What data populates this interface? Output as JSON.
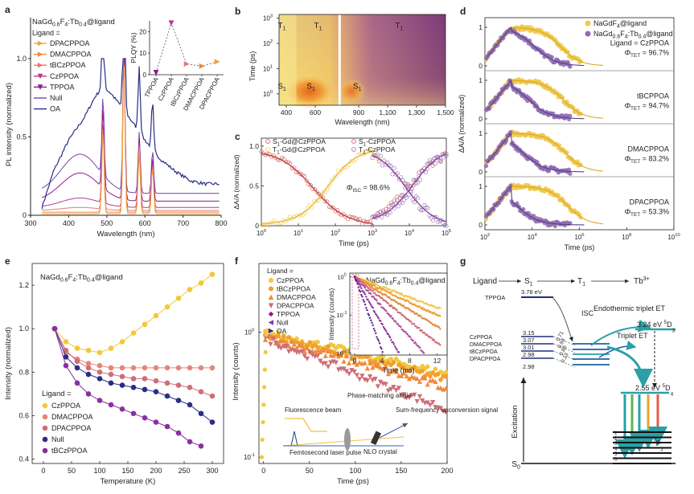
{
  "panel_labels": [
    "a",
    "b",
    "c",
    "d",
    "e",
    "f",
    "g"
  ],
  "colors": {
    "dpacppoa": "#f2a33a",
    "dmacppoa": "#f08a3c",
    "tbczppoa": "#e77a72",
    "czppoa": "#b83a8f",
    "tppoa": "#8b1a8f",
    "null": "#7a3fb0",
    "oa": "#2b2d84",
    "yellow": "#f0c84a",
    "purple": "#8e6bb0",
    "red": "#c9524f",
    "orange": "#f0a030",
    "cz_e": "#f3c83a",
    "dmac_e": "#e6857a",
    "dpac_e": "#cf6d78",
    "null_e": "#2b2d84",
    "tbcz_e": "#8b2fa0",
    "teal": "#2aa0a6",
    "blue": "#1f5fa6",
    "green": "#5db356"
  },
  "chart_data": [
    {
      "id": "a",
      "type": "line",
      "title": "NaGd0.6F4:Tb0.4@ligand",
      "legend_title": "Ligand =",
      "series": [
        {
          "name": "DPACPPOA",
          "color_key": "dpacppoa"
        },
        {
          "name": "DMACPPOA",
          "color_key": "dmacppoa"
        },
        {
          "name": "tBCzPPOA",
          "color_key": "tbczppoa"
        },
        {
          "name": "CzPPOA",
          "color_key": "czppoa"
        },
        {
          "name": "TPPOA",
          "color_key": "tppoa"
        },
        {
          "name": "Null",
          "color_key": "null"
        },
        {
          "name": "OA",
          "color_key": "oa"
        }
      ],
      "xlabel": "Wavelength (nm)",
      "ylabel": "PL intensity (normalized)",
      "xlim": [
        300,
        800
      ],
      "ylim": [
        0,
        1.2
      ],
      "xticks": [
        300,
        400,
        500,
        600,
        700,
        800
      ],
      "yticks": [
        0,
        0.5,
        1.0
      ],
      "ytick_labels": [
        "0",
        "0.5",
        "1.0"
      ],
      "emission_peaks_nm": [
        490,
        545,
        585,
        620
      ],
      "emission_peak_heights": [
        0.55,
        1.0,
        0.42,
        0.3
      ],
      "oa_broad_band": {
        "x": [
          330,
          360,
          400,
          440,
          470,
          490,
          510,
          530,
          560,
          600,
          640,
          680,
          720,
          760,
          790
        ],
        "y": [
          0.05,
          0.28,
          0.48,
          0.62,
          0.76,
          0.82,
          0.78,
          0.72,
          0.62,
          0.48,
          0.36,
          0.28,
          0.22,
          0.2,
          0.2
        ]
      },
      "inset": {
        "type": "line",
        "ylabel": "PLQY (%)",
        "ylim": [
          0,
          25
        ],
        "yticks": [
          0,
          10,
          20
        ],
        "categories": [
          "TPPOA",
          "CzPPOA",
          "tBCzPPOA",
          "DMACPPOA",
          "DPACPPOA"
        ],
        "values": [
          1,
          24,
          5,
          4,
          6
        ],
        "point_color_keys": [
          "tppoa",
          "czppoa",
          "tbczppoa",
          "dmacppoa",
          "dpacppoa"
        ]
      }
    },
    {
      "id": "b",
      "type": "heatmap",
      "xlabel": "Wavelength (nm)",
      "ylabel": "Time (ps)",
      "xticks": [
        400,
        600,
        900,
        1100,
        1300,
        1500
      ],
      "xtick_labels": [
        "400",
        "600",
        "900",
        "1,100",
        "1,300",
        "1,500"
      ],
      "yticks_exp": [
        "0",
        "1",
        "2",
        "3"
      ],
      "region_labels": [
        {
          "text": "T",
          "sub": "1",
          "wavelength": 370,
          "log_time": 2.7
        },
        {
          "text": "T",
          "sub": "1",
          "wavelength": 620,
          "log_time": 2.7
        },
        {
          "text": "T",
          "sub": "1",
          "wavelength": 1180,
          "log_time": 2.7
        },
        {
          "text": "S",
          "sub": "1",
          "wavelength": 370,
          "log_time": 0.3
        },
        {
          "text": "S",
          "sub": "1",
          "wavelength": 570,
          "log_time": 0.3
        },
        {
          "text": "S",
          "sub": "1",
          "wavelength": 890,
          "log_time": 0.3
        }
      ]
    },
    {
      "id": "c",
      "type": "scatter",
      "xlabel": "Time (ps)",
      "ylabel": "ΔA/A (normalized)",
      "xlim_log": [
        0,
        5
      ],
      "ylim": [
        0,
        1.1
      ],
      "xticks_exp": [
        "0",
        "1",
        "2",
        "3",
        "4",
        "5"
      ],
      "yticks": [
        0,
        0.5,
        1.0
      ],
      "ytick_labels": [
        "0",
        "0.5",
        "1.0"
      ],
      "legend": [
        {
          "name": "S1-Gd@CzPPOA",
          "base": "S",
          "sub": "1",
          "rest": "-Gd@CzPPOA",
          "color_key": "red"
        },
        {
          "name": "T1-Gd@CzPPOA",
          "base": "T",
          "sub": "1",
          "rest": "-Gd@CzPPOA",
          "color_key": "yellow"
        },
        {
          "name": "S1-CzPPOA",
          "base": "S",
          "sub": "1",
          "rest": "-CzPPOA",
          "color_key": "red"
        },
        {
          "name": "T1-CzPPOA",
          "base": "T",
          "sub": "1",
          "rest": "-CzPPOA",
          "color_key": "purple"
        }
      ],
      "annotation": {
        "base": "Φ",
        "sub": "ISC",
        "rest": " = 98.6%"
      }
    },
    {
      "id": "d",
      "type": "scatter",
      "xlabel": "Time (ps)",
      "ylabel": "ΔA/A (normalized)",
      "xticks_exp": [
        "2",
        "4",
        "6",
        "8",
        "10"
      ],
      "legend": [
        {
          "name": "NaGdF4@ligand",
          "color_key": "yellow"
        },
        {
          "name": "NaGd0.6F4:Tb0.4@ligand",
          "color_key": "purple"
        }
      ],
      "subpanels": [
        {
          "ligand": "Ligand = CzPPOA",
          "phi": {
            "base": "Φ",
            "sub": "TET",
            "rest": " = 96.7%"
          },
          "yticks": [
            "0",
            "1"
          ]
        },
        {
          "ligand": "tBCPPOA",
          "phi": {
            "base": "Φ",
            "sub": "TET",
            "rest": " = 94.7%"
          },
          "yticks": [
            "0",
            "1"
          ]
        },
        {
          "ligand": "DMACPPOA",
          "phi": {
            "base": "Φ",
            "sub": "TET",
            "rest": " = 83.2%"
          },
          "yticks": [
            "0",
            "1"
          ]
        },
        {
          "ligand": "DPACPPOA",
          "phi": {
            "base": "Φ",
            "sub": "TET",
            "rest": " = 53.3%"
          },
          "yticks": [
            "0",
            "1"
          ]
        }
      ]
    },
    {
      "id": "e",
      "type": "line",
      "title": "NaGd0.6F4:Tb0.4@ligand",
      "xlabel": "Temperature (K)",
      "ylabel": "Intensity (normalized)",
      "xlim": [
        -20,
        320
      ],
      "ylim": [
        0.38,
        1.3
      ],
      "xticks": [
        0,
        50,
        100,
        150,
        200,
        250,
        300
      ],
      "yticks": [
        0.4,
        0.6,
        0.8,
        1.0,
        1.2
      ],
      "ytick_labels": [
        "0.4",
        "0.6",
        "0.8",
        "1.0",
        "1.2"
      ],
      "legend_title": "Ligand =",
      "series": [
        {
          "name": "CzPPOA",
          "color_key": "cz_e",
          "x": [
            20,
            40,
            60,
            80,
            100,
            120,
            140,
            160,
            180,
            200,
            220,
            240,
            260,
            280,
            300
          ],
          "y": [
            1.0,
            0.94,
            0.91,
            0.9,
            0.89,
            0.91,
            0.94,
            0.98,
            1.02,
            1.06,
            1.1,
            1.14,
            1.18,
            1.21,
            1.25
          ]
        },
        {
          "name": "DMACPPOA",
          "color_key": "dmac_e",
          "x": [
            20,
            40,
            60,
            80,
            100,
            120,
            140,
            160,
            180,
            200,
            220,
            240,
            260,
            280,
            300
          ],
          "y": [
            1.0,
            0.89,
            0.86,
            0.84,
            0.83,
            0.82,
            0.82,
            0.82,
            0.82,
            0.82,
            0.82,
            0.82,
            0.82,
            0.82,
            0.82
          ]
        },
        {
          "name": "DPACPPOA",
          "color_key": "dpac_e",
          "x": [
            20,
            40,
            60,
            80,
            100,
            120,
            140,
            160,
            180,
            200,
            220,
            240,
            260,
            280,
            300
          ],
          "y": [
            1.0,
            0.9,
            0.85,
            0.82,
            0.8,
            0.79,
            0.78,
            0.77,
            0.77,
            0.76,
            0.75,
            0.74,
            0.73,
            0.71,
            0.69
          ]
        },
        {
          "name": "Null",
          "color_key": "null_e",
          "x": [
            20,
            40,
            60,
            80,
            100,
            120,
            140,
            160,
            180,
            200,
            220,
            240,
            260,
            280,
            300
          ],
          "y": [
            1.0,
            0.87,
            0.82,
            0.79,
            0.77,
            0.75,
            0.74,
            0.73,
            0.72,
            0.71,
            0.69,
            0.67,
            0.65,
            0.61,
            0.57
          ]
        },
        {
          "name": "tBCzPPOA",
          "color_key": "tbcz_e",
          "x": [
            20,
            40,
            60,
            80,
            100,
            120,
            140,
            160,
            180,
            200,
            220,
            240,
            260,
            280
          ],
          "y": [
            1.0,
            0.83,
            0.75,
            0.7,
            0.67,
            0.65,
            0.63,
            0.61,
            0.59,
            0.57,
            0.55,
            0.52,
            0.48,
            0.46
          ]
        }
      ]
    },
    {
      "id": "f",
      "type": "scatter",
      "xlabel": "Time (ps)",
      "ylabel": "Intensity (counts)",
      "xlim": [
        -5,
        200
      ],
      "xticks": [
        0,
        50,
        100,
        150,
        200
      ],
      "yticks_exp": [
        "-1",
        "0"
      ],
      "legend_title": "Ligand =",
      "legend": [
        {
          "name": "CzPPOA",
          "color_key": "cz_e",
          "shape": "circle"
        },
        {
          "name": "tBCzPPOA",
          "color_key": "orange",
          "shape": "circle"
        },
        {
          "name": "DMACPPOA",
          "color_key": "dmacppoa",
          "shape": "triangle-up"
        },
        {
          "name": "DPACPPOA",
          "color_key": "dpac_e",
          "shape": "triangle-down"
        },
        {
          "name": "TPPOA",
          "color_key": "tppoa",
          "shape": "diamond"
        },
        {
          "name": "Null",
          "color_key": "null",
          "shape": "triangle-left"
        },
        {
          "name": "OA",
          "color_key": "oa",
          "shape": "triangle-right"
        }
      ],
      "inset": {
        "title": "NaGd0.6F4:Tb0.4@ligand",
        "xlabel": "Time (ms)",
        "ylabel": "Intensity (counts)",
        "xticks": [
          0,
          4,
          8,
          12
        ],
        "yticks_exp": [
          "-2",
          "-1",
          "0"
        ]
      },
      "schematic": {
        "fluorescence_beam": "Fluorescence beam",
        "phase_matching": "Phase-matching angle",
        "sum_frequency": "Sum-frequency upconversion signal",
        "femtosecond": "Femtosecond laser pulse",
        "nlo_crystal": "NLO crystal"
      }
    },
    {
      "id": "g",
      "type": "diagram",
      "header": {
        "ligand": "Ligand",
        "s1": "S",
        "s1_sub": "1",
        "t1": "T",
        "t1_sub": "1",
        "tb": "Tb",
        "tb_sup": "3+"
      },
      "tppoa": {
        "name": "TPPOA",
        "energy": "3.78 eV"
      },
      "ligands": [
        {
          "name": "CzPPOA",
          "energy": "3.15",
          "coupling": "0.71"
        },
        {
          "name": "DMACPPOA",
          "energy": "3.07",
          "coupling": "0.93"
        },
        {
          "name": "tBCzPPOA",
          "energy": "3.01",
          "coupling": "0.88"
        },
        {
          "name": "DPACPPOA",
          "energy": "2.98",
          "coupling": "0.13"
        }
      ],
      "isc": "ISC",
      "endothermic": "Endothermic triplet ET",
      "triplet_et": "Triplet ET",
      "d3": {
        "energy": "3.24 eV",
        "sup": "5",
        "state": "D",
        "sub": "3"
      },
      "d4": {
        "energy": "2.55 eV",
        "sup": "5",
        "state": "D",
        "sub": "4"
      },
      "f_levels": {
        "sup": "7",
        "state": "F",
        "sub": "J"
      },
      "j_numbers": [
        "1",
        "2",
        "3",
        "4",
        "5",
        "6"
      ],
      "excitation": "Excitation",
      "ground": {
        "state": "S",
        "sub": "0"
      }
    }
  ]
}
